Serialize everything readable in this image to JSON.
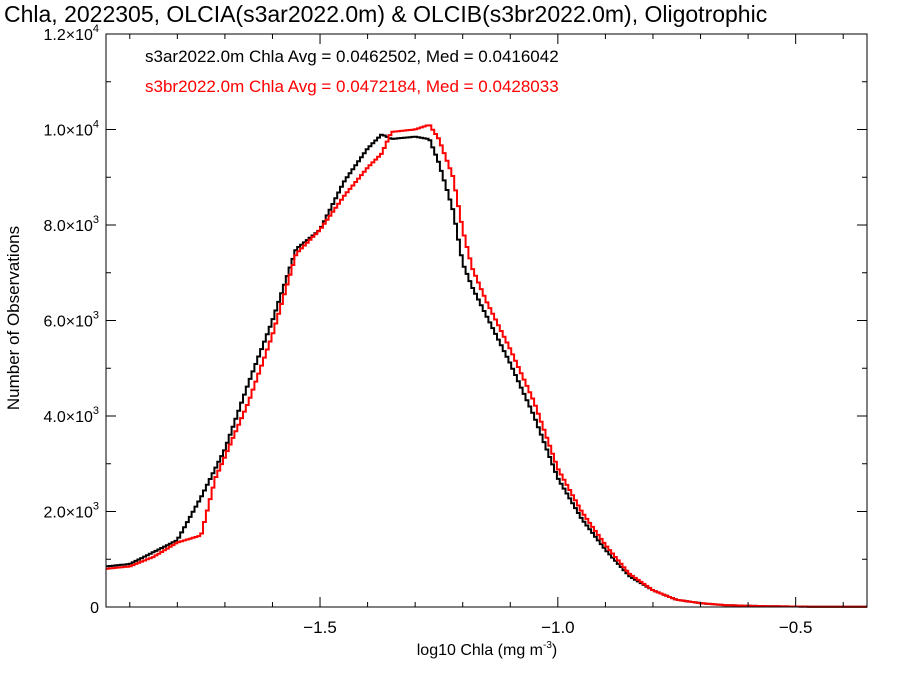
{
  "chart_data": {
    "type": "line",
    "title": "Chla, 2022305, OLCIA(s3ar2022.0m) & OLCIB(s3br2022.0m), Oligotrophic",
    "xlabel_prefix": "log10 Chla (mg m",
    "xlabel_sup": "-3",
    "xlabel_suffix": ")",
    "ylabel": "Number of Observations",
    "xlim": [
      -1.95,
      -0.35
    ],
    "ylim": [
      0,
      12000
    ],
    "x_ticks": [
      {
        "value": -1.5,
        "label": "−1.5"
      },
      {
        "value": -1.0,
        "label": "−1.0"
      },
      {
        "value": -0.5,
        "label": "−0.5"
      }
    ],
    "y_ticks": [
      {
        "value": 0,
        "mant": "0",
        "exp": ""
      },
      {
        "value": 2000,
        "mant": "2.0×10",
        "exp": "3"
      },
      {
        "value": 4000,
        "mant": "4.0×10",
        "exp": "3"
      },
      {
        "value": 6000,
        "mant": "6.0×10",
        "exp": "3"
      },
      {
        "value": 8000,
        "mant": "8.0×10",
        "exp": "3"
      },
      {
        "value": 10000,
        "mant": "1.0×10",
        "exp": "4"
      },
      {
        "value": 12000,
        "mant": "1.2×10",
        "exp": "4"
      }
    ],
    "grid": false,
    "legend_position": "top-left",
    "series": [
      {
        "name": "s3ar2022.0m",
        "legend": "s3ar2022.0m Chla Avg = 0.0462502, Med = 0.0416042",
        "color": "#000000",
        "x": [
          -1.95,
          -1.9,
          -1.85,
          -1.8,
          -1.75,
          -1.72,
          -1.7,
          -1.65,
          -1.6,
          -1.55,
          -1.5,
          -1.45,
          -1.4,
          -1.37,
          -1.35,
          -1.3,
          -1.27,
          -1.25,
          -1.22,
          -1.2,
          -1.18,
          -1.15,
          -1.1,
          -1.05,
          -1.0,
          -0.95,
          -0.9,
          -0.85,
          -0.8,
          -0.75,
          -0.7,
          -0.65,
          -0.6,
          -0.55,
          -0.5,
          -0.45,
          -0.4,
          -0.35
        ],
        "y": [
          850,
          900,
          1150,
          1400,
          2300,
          2900,
          3300,
          4700,
          6000,
          7500,
          7900,
          8900,
          9600,
          9900,
          9800,
          9850,
          9800,
          9300,
          8300,
          7200,
          6700,
          6100,
          5100,
          4000,
          2700,
          1850,
          1200,
          650,
          350,
          150,
          80,
          40,
          25,
          15,
          10,
          5,
          5,
          5
        ]
      },
      {
        "name": "s3br2022.0m",
        "legend": "s3br2022.0m Chla Avg = 0.0472184, Med = 0.0428033",
        "color": "#ff0000",
        "x": [
          -1.95,
          -1.9,
          -1.85,
          -1.8,
          -1.75,
          -1.72,
          -1.7,
          -1.65,
          -1.6,
          -1.55,
          -1.5,
          -1.45,
          -1.4,
          -1.37,
          -1.35,
          -1.3,
          -1.27,
          -1.25,
          -1.22,
          -1.2,
          -1.18,
          -1.15,
          -1.1,
          -1.05,
          -1.0,
          -0.95,
          -0.9,
          -0.85,
          -0.8,
          -0.75,
          -0.7,
          -0.65,
          -0.6,
          -0.55,
          -0.5,
          -0.45,
          -0.4,
          -0.35
        ],
        "y": [
          800,
          850,
          1050,
          1350,
          1500,
          2700,
          3150,
          4300,
          5700,
          7400,
          7900,
          8600,
          9200,
          9500,
          9950,
          10000,
          10100,
          9800,
          9000,
          7900,
          7100,
          6400,
          5400,
          4300,
          2900,
          2000,
          1300,
          700,
          350,
          150,
          80,
          40,
          25,
          15,
          10,
          5,
          5,
          5
        ]
      }
    ]
  }
}
